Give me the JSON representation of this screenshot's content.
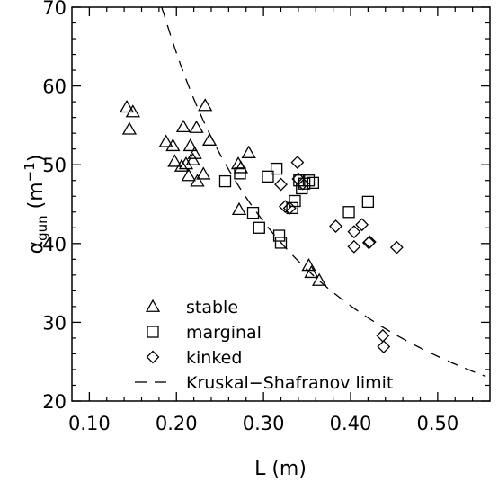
{
  "chart_data": {
    "type": "scatter",
    "xlabel": "L (m)",
    "ylabel": {
      "base": "α",
      "sub": "gun",
      "unit_open": " (m",
      "sup": "−1",
      "unit_close": ")"
    },
    "xlim": [
      0.08,
      0.56
    ],
    "ylim": [
      20,
      70
    ],
    "xticks": [
      0.1,
      0.2,
      0.3,
      0.4,
      0.5
    ],
    "xtick_labels": [
      "0.10",
      "0.20",
      "0.30",
      "0.40",
      "0.50"
    ],
    "yticks": [
      20,
      30,
      40,
      50,
      60,
      70
    ],
    "ytick_labels": [
      "20",
      "30",
      "40",
      "50",
      "60",
      "70"
    ],
    "grid": false,
    "legend_placement": "bottom-left",
    "series": [
      {
        "name": "stable",
        "marker": "triangle",
        "points": [
          [
            0.143,
            57.3
          ],
          [
            0.146,
            54.5
          ],
          [
            0.15,
            56.7
          ],
          [
            0.188,
            52.9
          ],
          [
            0.196,
            52.4
          ],
          [
            0.198,
            50.4
          ],
          [
            0.206,
            49.8
          ],
          [
            0.208,
            54.8
          ],
          [
            0.211,
            50.1
          ],
          [
            0.214,
            48.6
          ],
          [
            0.216,
            52.4
          ],
          [
            0.219,
            50.6
          ],
          [
            0.221,
            51.4
          ],
          [
            0.223,
            54.7
          ],
          [
            0.224,
            47.9
          ],
          [
            0.231,
            48.8
          ],
          [
            0.233,
            57.5
          ],
          [
            0.238,
            53.1
          ],
          [
            0.271,
            50.1
          ],
          [
            0.272,
            44.3
          ],
          [
            0.274,
            49.6
          ],
          [
            0.283,
            51.5
          ],
          [
            0.352,
            37.2
          ],
          [
            0.355,
            36.3
          ],
          [
            0.364,
            35.3
          ]
        ]
      },
      {
        "name": "marginal",
        "marker": "square",
        "points": [
          [
            0.256,
            47.9
          ],
          [
            0.273,
            48.9
          ],
          [
            0.288,
            43.9
          ],
          [
            0.295,
            42.0
          ],
          [
            0.305,
            48.5
          ],
          [
            0.315,
            49.5
          ],
          [
            0.318,
            41.0
          ],
          [
            0.32,
            40.1
          ],
          [
            0.333,
            44.5
          ],
          [
            0.336,
            45.4
          ],
          [
            0.341,
            48.0
          ],
          [
            0.344,
            47.0
          ],
          [
            0.347,
            47.6
          ],
          [
            0.352,
            48.0
          ],
          [
            0.357,
            47.7
          ],
          [
            0.398,
            44.0
          ],
          [
            0.42,
            45.3
          ]
        ]
      },
      {
        "name": "kinked",
        "marker": "diamond",
        "points": [
          [
            0.32,
            47.5
          ],
          [
            0.325,
            44.7
          ],
          [
            0.33,
            44.5
          ],
          [
            0.339,
            50.3
          ],
          [
            0.34,
            48.2
          ],
          [
            0.345,
            47.6
          ],
          [
            0.383,
            42.2
          ],
          [
            0.404,
            41.5
          ],
          [
            0.404,
            39.6
          ],
          [
            0.413,
            42.4
          ],
          [
            0.421,
            40.1
          ],
          [
            0.422,
            40.2
          ],
          [
            0.437,
            28.3
          ],
          [
            0.438,
            26.9
          ],
          [
            0.453,
            39.5
          ]
        ]
      }
    ],
    "curves": [
      {
        "name": "Kruskal−Shafranov limit",
        "style": "dashed",
        "relation": "alpha = 12.84 / L",
        "x_range": [
          0.183,
          0.555
        ]
      }
    ]
  }
}
